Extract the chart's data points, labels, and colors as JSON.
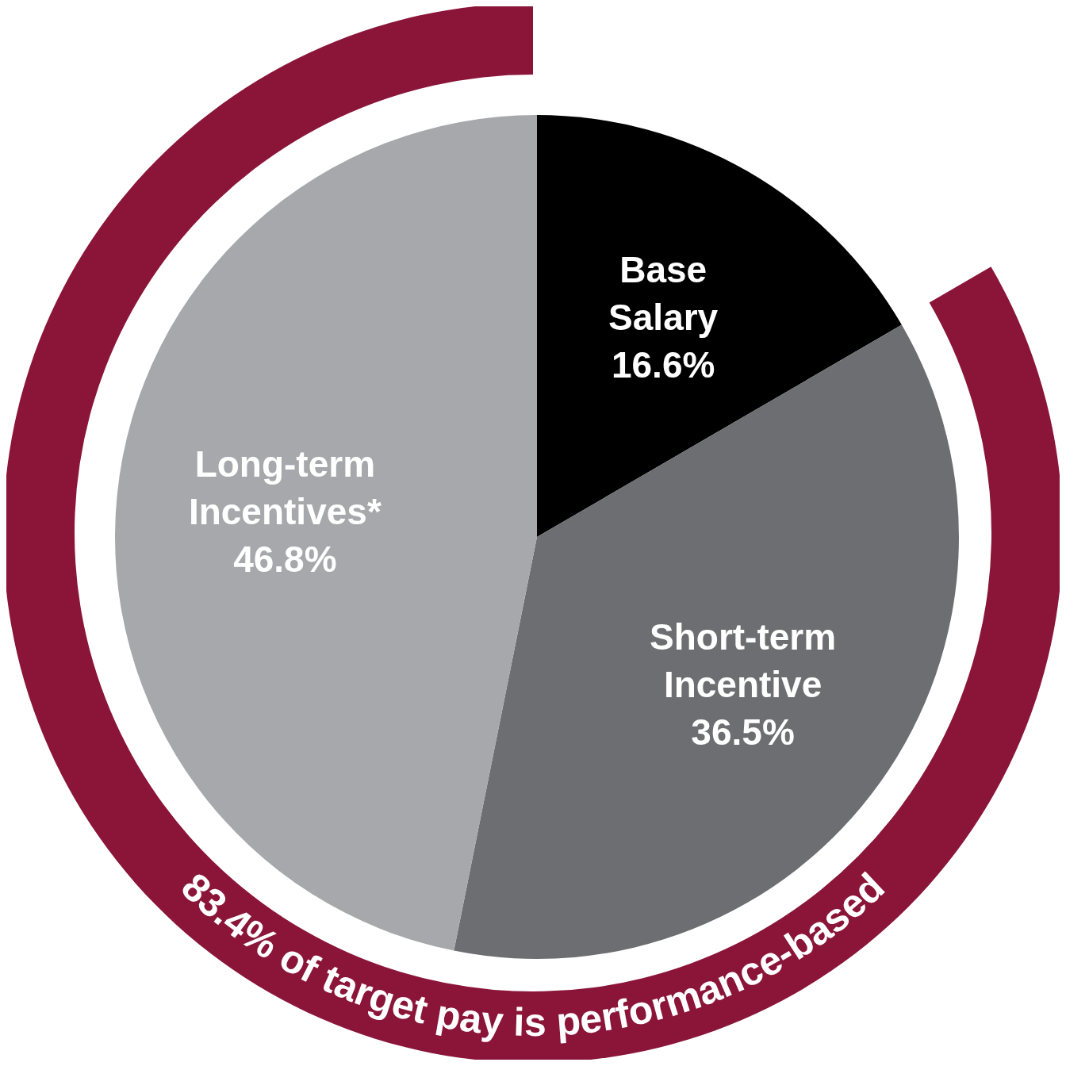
{
  "chart_data": {
    "type": "pie",
    "categories": [
      "Base Salary",
      "Short-term Incentive",
      "Long-term Incentives*"
    ],
    "values": [
      16.6,
      36.5,
      46.8
    ],
    "colors": [
      "#000000",
      "#6d6e71",
      "#a7a8ac"
    ],
    "value_labels": [
      "16.6%",
      "36.5%",
      "46.8%"
    ],
    "annotations": [
      "83.4% of target pay is performance-based"
    ],
    "legend": false
  }
}
